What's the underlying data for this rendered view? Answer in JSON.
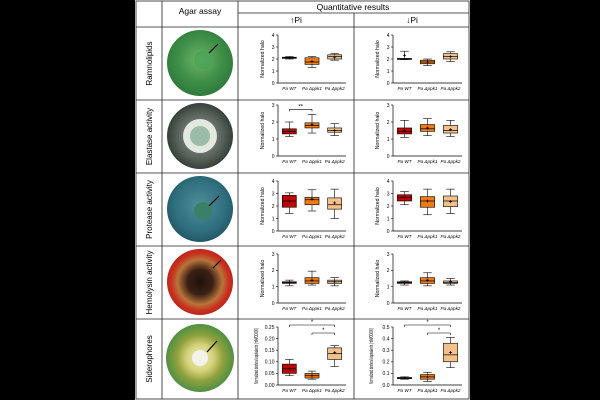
{
  "headers": {
    "agar": "Agar assay",
    "quant": "Quantitative results",
    "up": "↑Pi",
    "down": "↓Pi"
  },
  "colors": {
    "WT": "#c00000",
    "ppk1": "#f07a14",
    "ppk2": "#f4c08c",
    "grid": "#000000"
  },
  "groups": [
    "Pa WT",
    "Pa Δppk1",
    "Pa Δppk2"
  ],
  "assays": [
    {
      "label": "Ramnolipids",
      "plate": "green"
    },
    {
      "label": "Elastase activity",
      "plate": "dark"
    },
    {
      "label": "Protease activity",
      "plate": "teal"
    },
    {
      "label": "Hemolysin activity",
      "plate": "red"
    },
    {
      "label": "Siderophores",
      "plate": "green"
    }
  ],
  "chart_data": [
    {
      "type": "box",
      "assay": "Ramnolipids",
      "condition": "↑Pi",
      "ylabel": "Normalized halo",
      "ylim": [
        0,
        4
      ],
      "yticks": [
        "0",
        "1",
        "2",
        "3",
        "4"
      ],
      "categories": [
        "Pa WT",
        "Pa Δppk1",
        "Pa Δppk2"
      ],
      "boxes": [
        {
          "min": 2.0,
          "q1": 2.05,
          "median": 2.1,
          "q3": 2.15,
          "max": 2.2,
          "mean": 2.1
        },
        {
          "min": 1.3,
          "q1": 1.55,
          "median": 1.75,
          "q3": 2.1,
          "max": 2.2,
          "mean": 1.8
        },
        {
          "min": 1.9,
          "q1": 2.0,
          "median": 2.2,
          "q3": 2.35,
          "max": 2.45,
          "mean": 2.15
        }
      ],
      "annotations": []
    },
    {
      "type": "box",
      "assay": "Ramnolipids",
      "condition": "↓Pi",
      "ylabel": "Normalized halo",
      "ylim": [
        0,
        4
      ],
      "yticks": [
        "0",
        "1",
        "2",
        "3",
        "4"
      ],
      "categories": [
        "Pa WT",
        "Pa Δppk1",
        "Pa Δppk2"
      ],
      "boxes": [
        {
          "min": 1.95,
          "q1": 2.0,
          "median": 2.0,
          "q3": 2.05,
          "max": 2.65,
          "mean": 2.3
        },
        {
          "min": 1.45,
          "q1": 1.6,
          "median": 1.75,
          "q3": 1.9,
          "max": 2.0,
          "mean": 1.75
        },
        {
          "min": 1.8,
          "q1": 2.0,
          "median": 2.2,
          "q3": 2.45,
          "max": 2.6,
          "mean": 2.2
        }
      ],
      "annotations": []
    },
    {
      "type": "box",
      "assay": "Elastase activity",
      "condition": "↑Pi",
      "ylabel": "Normalized halo",
      "ylim": [
        0,
        3
      ],
      "yticks": [
        "0",
        "1",
        "2",
        "3"
      ],
      "categories": [
        "Pa WT",
        "Pa Δppk1",
        "Pa Δppk2"
      ],
      "boxes": [
        {
          "min": 1.15,
          "q1": 1.3,
          "median": 1.45,
          "q3": 1.6,
          "max": 2.0,
          "mean": 1.45
        },
        {
          "min": 1.35,
          "q1": 1.65,
          "median": 1.8,
          "q3": 1.95,
          "max": 2.45,
          "mean": 1.85
        },
        {
          "min": 1.2,
          "q1": 1.4,
          "median": 1.5,
          "q3": 1.65,
          "max": 1.9,
          "mean": 1.5
        }
      ],
      "annotations": [
        {
          "text": "**",
          "from": 0,
          "to": 1
        }
      ]
    },
    {
      "type": "box",
      "assay": "Elastase activity",
      "condition": "↓Pi",
      "ylabel": "Normalized halo",
      "ylim": [
        0,
        3
      ],
      "yticks": [
        "0",
        "1",
        "2",
        "3"
      ],
      "categories": [
        "Pa WT",
        "Pa Δppk1",
        "Pa Δppk2"
      ],
      "boxes": [
        {
          "min": 1.1,
          "q1": 1.3,
          "median": 1.45,
          "q3": 1.65,
          "max": 2.1,
          "mean": 1.5
        },
        {
          "min": 1.2,
          "q1": 1.45,
          "median": 1.6,
          "q3": 1.85,
          "max": 2.2,
          "mean": 1.65
        },
        {
          "min": 1.15,
          "q1": 1.35,
          "median": 1.5,
          "q3": 1.8,
          "max": 2.1,
          "mean": 1.55
        }
      ],
      "annotations": []
    },
    {
      "type": "box",
      "assay": "Protease activity",
      "condition": "↑Pi",
      "ylabel": "Normalized halo",
      "ylim": [
        0,
        4
      ],
      "yticks": [
        "0",
        "1",
        "2",
        "3",
        "4"
      ],
      "categories": [
        "Pa WT",
        "Pa Δppk1",
        "Pa Δppk2"
      ],
      "boxes": [
        {
          "min": 1.4,
          "q1": 1.9,
          "median": 2.4,
          "q3": 2.85,
          "max": 3.05,
          "mean": 2.4
        },
        {
          "min": 1.6,
          "q1": 2.1,
          "median": 2.5,
          "q3": 2.7,
          "max": 3.3,
          "mean": 2.55
        },
        {
          "min": 1.0,
          "q1": 1.75,
          "median": 2.1,
          "q3": 2.65,
          "max": 3.35,
          "mean": 2.25
        }
      ],
      "annotations": []
    },
    {
      "type": "box",
      "assay": "Protease activity",
      "condition": "↓Pi",
      "ylabel": "Normalized halo",
      "ylim": [
        0,
        4
      ],
      "yticks": [
        "0",
        "1",
        "2",
        "3",
        "4"
      ],
      "categories": [
        "Pa WT",
        "Pa Δppk1",
        "Pa Δppk2"
      ],
      "boxes": [
        {
          "min": 2.1,
          "q1": 2.4,
          "median": 2.7,
          "q3": 2.9,
          "max": 3.15,
          "mean": 2.7
        },
        {
          "min": 1.3,
          "q1": 1.9,
          "median": 2.4,
          "q3": 2.75,
          "max": 3.35,
          "mean": 2.4
        },
        {
          "min": 1.4,
          "q1": 1.95,
          "median": 2.4,
          "q3": 2.8,
          "max": 3.35,
          "mean": 2.35
        }
      ],
      "annotations": []
    },
    {
      "type": "box",
      "assay": "Hemolysin activity",
      "condition": "↑Pi",
      "ylabel": "Normalized halo",
      "ylim": [
        0,
        3
      ],
      "yticks": [
        "0",
        "1",
        "2",
        "3"
      ],
      "categories": [
        "Pa WT",
        "Pa Δppk1",
        "Pa Δppk2"
      ],
      "boxes": [
        {
          "min": 1.05,
          "q1": 1.2,
          "median": 1.25,
          "q3": 1.3,
          "max": 1.4,
          "mean": 1.25
        },
        {
          "min": 1.1,
          "q1": 1.2,
          "median": 1.35,
          "q3": 1.55,
          "max": 1.95,
          "mean": 1.4
        },
        {
          "min": 1.05,
          "q1": 1.2,
          "median": 1.3,
          "q3": 1.4,
          "max": 1.55,
          "mean": 1.3
        }
      ],
      "annotations": []
    },
    {
      "type": "box",
      "assay": "Hemolysin activity",
      "condition": "↓Pi",
      "ylabel": "Normalized halo",
      "ylim": [
        0,
        3
      ],
      "yticks": [
        "0",
        "1",
        "2",
        "3"
      ],
      "categories": [
        "Pa WT",
        "Pa Δppk1",
        "Pa Δppk2"
      ],
      "boxes": [
        {
          "min": 1.1,
          "q1": 1.2,
          "median": 1.25,
          "q3": 1.3,
          "max": 1.35,
          "mean": 1.25
        },
        {
          "min": 1.05,
          "q1": 1.2,
          "median": 1.35,
          "q3": 1.55,
          "max": 1.85,
          "mean": 1.4
        },
        {
          "min": 1.1,
          "q1": 1.2,
          "median": 1.25,
          "q3": 1.35,
          "max": 1.5,
          "mean": 1.3
        }
      ],
      "annotations": []
    },
    {
      "type": "box",
      "assay": "Siderophores",
      "condition": "↑Pi",
      "ylabel": "Normalized desferal equivalents (mM/OD600)",
      "ylim": [
        0,
        0.25
      ],
      "yticks": [
        "0.00",
        "0.05",
        "0.10",
        "0.15",
        "0.20",
        "0.25"
      ],
      "categories": [
        "Pa WT",
        "Pa Δppk1",
        "Pa Δppk2"
      ],
      "boxes": [
        {
          "min": 0.04,
          "q1": 0.05,
          "median": 0.07,
          "q3": 0.09,
          "max": 0.11,
          "mean": 0.07
        },
        {
          "min": 0.025,
          "q1": 0.03,
          "median": 0.04,
          "q3": 0.05,
          "max": 0.06,
          "mean": 0.04
        },
        {
          "min": 0.08,
          "q1": 0.11,
          "median": 0.135,
          "q3": 0.16,
          "max": 0.17,
          "mean": 0.14
        }
      ],
      "annotations": [
        {
          "text": "*",
          "from": 0,
          "to": 2
        },
        {
          "text": "*",
          "from": 1,
          "to": 2
        }
      ]
    },
    {
      "type": "box",
      "assay": "Siderophores",
      "condition": "↓Pi",
      "ylabel": "Normalized desferal equivalents (mM/OD600)",
      "ylim": [
        0,
        0.5
      ],
      "yticks": [
        "0.0",
        "0.1",
        "0.2",
        "0.3",
        "0.4",
        "0.5"
      ],
      "categories": [
        "Pa WT",
        "Pa Δppk1",
        "Pa Δppk2"
      ],
      "boxes": [
        {
          "min": 0.05,
          "q1": 0.055,
          "median": 0.06,
          "q3": 0.065,
          "max": 0.07,
          "mean": 0.06
        },
        {
          "min": 0.03,
          "q1": 0.05,
          "median": 0.07,
          "q3": 0.09,
          "max": 0.11,
          "mean": 0.07
        },
        {
          "min": 0.15,
          "q1": 0.2,
          "median": 0.26,
          "q3": 0.36,
          "max": 0.41,
          "mean": 0.28
        }
      ],
      "annotations": [
        {
          "text": "*",
          "from": 0,
          "to": 2
        },
        {
          "text": "*",
          "from": 1,
          "to": 2
        }
      ]
    }
  ]
}
